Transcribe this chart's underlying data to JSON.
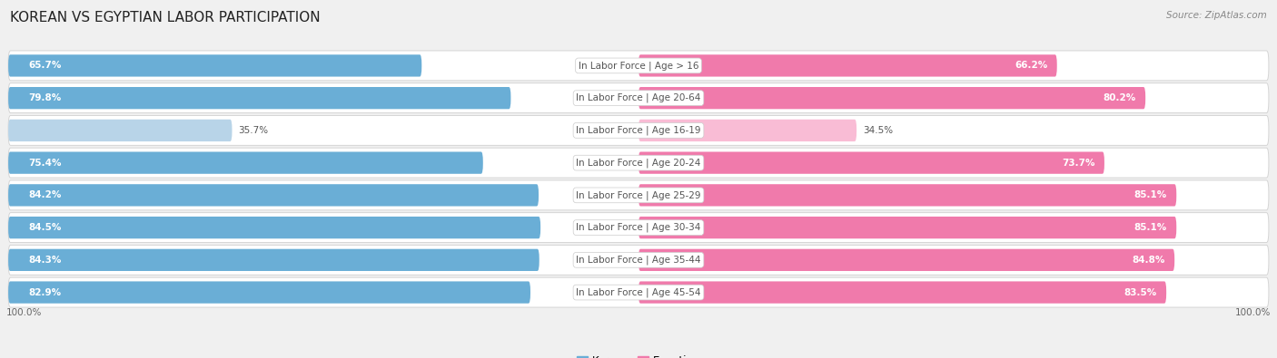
{
  "title": "KOREAN VS EGYPTIAN LABOR PARTICIPATION",
  "source": "Source: ZipAtlas.com",
  "categories": [
    "In Labor Force | Age > 16",
    "In Labor Force | Age 20-64",
    "In Labor Force | Age 16-19",
    "In Labor Force | Age 20-24",
    "In Labor Force | Age 25-29",
    "In Labor Force | Age 30-34",
    "In Labor Force | Age 35-44",
    "In Labor Force | Age 45-54"
  ],
  "korean_values": [
    65.7,
    79.8,
    35.7,
    75.4,
    84.2,
    84.5,
    84.3,
    82.9
  ],
  "egyptian_values": [
    66.2,
    80.2,
    34.5,
    73.7,
    85.1,
    85.1,
    84.8,
    83.5
  ],
  "korean_color": "#6aaed6",
  "korean_light_color": "#b8d4e8",
  "egyptian_color": "#f07aab",
  "egyptian_light_color": "#f9bcd5",
  "background_color": "#f0f0f0",
  "max_value": 100.0,
  "title_fontsize": 11,
  "label_fontsize": 7.5,
  "value_fontsize": 7.5,
  "legend_fontsize": 8.5,
  "source_fontsize": 7.5,
  "bottom_label": "100.0%"
}
